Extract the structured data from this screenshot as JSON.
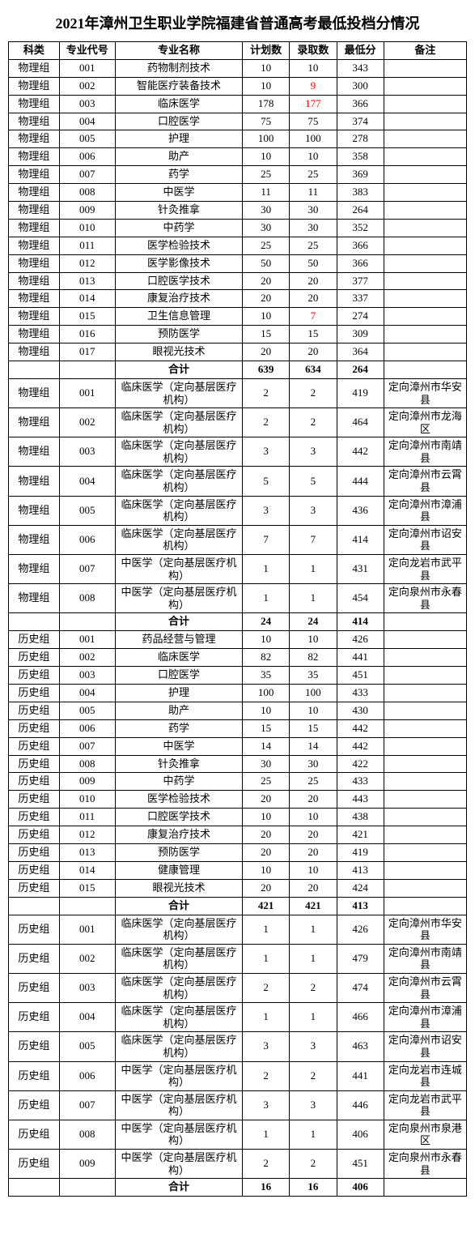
{
  "title": "2021年漳州卫生职业学院福建省普通高考最低投档分情况",
  "headers": {
    "category": "科类",
    "code": "专业代号",
    "name": "专业名称",
    "plan": "计划数",
    "admitted": "录取数",
    "min": "最低分",
    "note": "备注"
  },
  "subtotal_label": "合计",
  "sections": [
    {
      "rows": [
        {
          "cat": "物理组",
          "code": "001",
          "name": "药物制剂技术",
          "plan": "10",
          "adm": "10",
          "min": "343",
          "note": ""
        },
        {
          "cat": "物理组",
          "code": "002",
          "name": "智能医疗装备技术",
          "plan": "10",
          "adm": "9",
          "adm_red": true,
          "min": "300",
          "note": ""
        },
        {
          "cat": "物理组",
          "code": "003",
          "name": "临床医学",
          "plan": "178",
          "adm": "177",
          "adm_red": true,
          "min": "366",
          "note": ""
        },
        {
          "cat": "物理组",
          "code": "004",
          "name": "口腔医学",
          "plan": "75",
          "adm": "75",
          "min": "374",
          "note": ""
        },
        {
          "cat": "物理组",
          "code": "005",
          "name": "护理",
          "plan": "100",
          "adm": "100",
          "min": "278",
          "note": ""
        },
        {
          "cat": "物理组",
          "code": "006",
          "name": "助产",
          "plan": "10",
          "adm": "10",
          "min": "358",
          "note": ""
        },
        {
          "cat": "物理组",
          "code": "007",
          "name": "药学",
          "plan": "25",
          "adm": "25",
          "min": "369",
          "note": ""
        },
        {
          "cat": "物理组",
          "code": "008",
          "name": "中医学",
          "plan": "11",
          "adm": "11",
          "min": "383",
          "note": ""
        },
        {
          "cat": "物理组",
          "code": "009",
          "name": "针灸推拿",
          "plan": "30",
          "adm": "30",
          "min": "264",
          "note": ""
        },
        {
          "cat": "物理组",
          "code": "010",
          "name": "中药学",
          "plan": "30",
          "adm": "30",
          "min": "352",
          "note": ""
        },
        {
          "cat": "物理组",
          "code": "011",
          "name": "医学检验技术",
          "plan": "25",
          "adm": "25",
          "min": "366",
          "note": ""
        },
        {
          "cat": "物理组",
          "code": "012",
          "name": "医学影像技术",
          "plan": "50",
          "adm": "50",
          "min": "366",
          "note": ""
        },
        {
          "cat": "物理组",
          "code": "013",
          "name": "口腔医学技术",
          "plan": "20",
          "adm": "20",
          "min": "377",
          "note": ""
        },
        {
          "cat": "物理组",
          "code": "014",
          "name": "康复治疗技术",
          "plan": "20",
          "adm": "20",
          "min": "337",
          "note": ""
        },
        {
          "cat": "物理组",
          "code": "015",
          "name": "卫生信息管理",
          "plan": "10",
          "adm": "7",
          "adm_red": true,
          "min": "274",
          "note": ""
        },
        {
          "cat": "物理组",
          "code": "016",
          "name": "预防医学",
          "plan": "15",
          "adm": "15",
          "min": "309",
          "note": ""
        },
        {
          "cat": "物理组",
          "code": "017",
          "name": "眼视光技术",
          "plan": "20",
          "adm": "20",
          "min": "364",
          "note": ""
        }
      ],
      "subtotal": {
        "plan": "639",
        "adm": "634",
        "min": "264"
      }
    },
    {
      "rows": [
        {
          "cat": "物理组",
          "code": "001",
          "name": "临床医学（定向基层医疗机构）",
          "plan": "2",
          "adm": "2",
          "min": "419",
          "note": "定向漳州市华安县",
          "tall": true
        },
        {
          "cat": "物理组",
          "code": "002",
          "name": "临床医学（定向基层医疗机构）",
          "plan": "2",
          "adm": "2",
          "min": "464",
          "note": "定向漳州市龙海区",
          "tall": true
        },
        {
          "cat": "物理组",
          "code": "003",
          "name": "临床医学（定向基层医疗机构）",
          "plan": "3",
          "adm": "3",
          "min": "442",
          "note": "定向漳州市南靖县",
          "tall": true
        },
        {
          "cat": "物理组",
          "code": "004",
          "name": "临床医学（定向基层医疗机构）",
          "plan": "5",
          "adm": "5",
          "min": "444",
          "note": "定向漳州市云霄县",
          "tall": true
        },
        {
          "cat": "物理组",
          "code": "005",
          "name": "临床医学（定向基层医疗机构）",
          "plan": "3",
          "adm": "3",
          "min": "436",
          "note": "定向漳州市漳浦县",
          "tall": true
        },
        {
          "cat": "物理组",
          "code": "006",
          "name": "临床医学（定向基层医疗机构）",
          "plan": "7",
          "adm": "7",
          "min": "414",
          "note": "定向漳州市诏安县",
          "tall": true
        },
        {
          "cat": "物理组",
          "code": "007",
          "name": "中医学（定向基层医疗机构）",
          "plan": "1",
          "adm": "1",
          "min": "431",
          "note": "定向龙岩市武平县",
          "tall": true
        },
        {
          "cat": "物理组",
          "code": "008",
          "name": "中医学（定向基层医疗机构）",
          "plan": "1",
          "adm": "1",
          "min": "454",
          "note": "定向泉州市永春县",
          "tall": true
        }
      ],
      "subtotal": {
        "plan": "24",
        "adm": "24",
        "min": "414"
      }
    },
    {
      "rows": [
        {
          "cat": "历史组",
          "code": "001",
          "name": "药品经营与管理",
          "plan": "10",
          "adm": "10",
          "min": "426",
          "note": ""
        },
        {
          "cat": "历史组",
          "code": "002",
          "name": "临床医学",
          "plan": "82",
          "adm": "82",
          "min": "441",
          "note": ""
        },
        {
          "cat": "历史组",
          "code": "003",
          "name": "口腔医学",
          "plan": "35",
          "adm": "35",
          "min": "451",
          "note": ""
        },
        {
          "cat": "历史组",
          "code": "004",
          "name": "护理",
          "plan": "100",
          "adm": "100",
          "min": "433",
          "note": ""
        },
        {
          "cat": "历史组",
          "code": "005",
          "name": "助产",
          "plan": "10",
          "adm": "10",
          "min": "430",
          "note": ""
        },
        {
          "cat": "历史组",
          "code": "006",
          "name": "药学",
          "plan": "15",
          "adm": "15",
          "min": "442",
          "note": ""
        },
        {
          "cat": "历史组",
          "code": "007",
          "name": "中医学",
          "plan": "14",
          "adm": "14",
          "min": "442",
          "note": ""
        },
        {
          "cat": "历史组",
          "code": "008",
          "name": "针灸推拿",
          "plan": "30",
          "adm": "30",
          "min": "422",
          "note": ""
        },
        {
          "cat": "历史组",
          "code": "009",
          "name": "中药学",
          "plan": "25",
          "adm": "25",
          "min": "433",
          "note": ""
        },
        {
          "cat": "历史组",
          "code": "010",
          "name": "医学检验技术",
          "plan": "20",
          "adm": "20",
          "min": "443",
          "note": ""
        },
        {
          "cat": "历史组",
          "code": "011",
          "name": "口腔医学技术",
          "plan": "10",
          "adm": "10",
          "min": "438",
          "note": ""
        },
        {
          "cat": "历史组",
          "code": "012",
          "name": "康复治疗技术",
          "plan": "20",
          "adm": "20",
          "min": "421",
          "note": ""
        },
        {
          "cat": "历史组",
          "code": "013",
          "name": "预防医学",
          "plan": "20",
          "adm": "20",
          "min": "419",
          "note": ""
        },
        {
          "cat": "历史组",
          "code": "014",
          "name": "健康管理",
          "plan": "10",
          "adm": "10",
          "min": "413",
          "note": ""
        },
        {
          "cat": "历史组",
          "code": "015",
          "name": "眼视光技术",
          "plan": "20",
          "adm": "20",
          "min": "424",
          "note": ""
        }
      ],
      "subtotal": {
        "plan": "421",
        "adm": "421",
        "min": "413"
      }
    },
    {
      "rows": [
        {
          "cat": "历史组",
          "code": "001",
          "name": "临床医学（定向基层医疗机构）",
          "plan": "1",
          "adm": "1",
          "min": "426",
          "note": "定向漳州市华安县",
          "tall": true
        },
        {
          "cat": "历史组",
          "code": "002",
          "name": "临床医学（定向基层医疗机构）",
          "plan": "1",
          "adm": "1",
          "min": "479",
          "note": "定向漳州市南靖县",
          "tall": true
        },
        {
          "cat": "历史组",
          "code": "003",
          "name": "临床医学（定向基层医疗机构）",
          "plan": "2",
          "adm": "2",
          "min": "474",
          "note": "定向漳州市云霄县",
          "tall": true
        },
        {
          "cat": "历史组",
          "code": "004",
          "name": "临床医学（定向基层医疗机构）",
          "plan": "1",
          "adm": "1",
          "min": "466",
          "note": "定向漳州市漳浦县",
          "tall": true
        },
        {
          "cat": "历史组",
          "code": "005",
          "name": "临床医学（定向基层医疗机构）",
          "plan": "3",
          "adm": "3",
          "min": "463",
          "note": "定向漳州市诏安县",
          "tall": true
        },
        {
          "cat": "历史组",
          "code": "006",
          "name": "中医学（定向基层医疗机构）",
          "plan": "2",
          "adm": "2",
          "min": "441",
          "note": "定向龙岩市连城县",
          "tall": true
        },
        {
          "cat": "历史组",
          "code": "007",
          "name": "中医学（定向基层医疗机构）",
          "plan": "3",
          "adm": "3",
          "min": "446",
          "note": "定向龙岩市武平县",
          "tall": true
        },
        {
          "cat": "历史组",
          "code": "008",
          "name": "中医学（定向基层医疗机构）",
          "plan": "1",
          "adm": "1",
          "min": "406",
          "note": "定向泉州市泉港区",
          "tall": true
        },
        {
          "cat": "历史组",
          "code": "009",
          "name": "中医学（定向基层医疗机构）",
          "plan": "2",
          "adm": "2",
          "min": "451",
          "note": "定向泉州市永春县",
          "tall": true
        }
      ],
      "subtotal": {
        "plan": "16",
        "adm": "16",
        "min": "406"
      }
    }
  ]
}
